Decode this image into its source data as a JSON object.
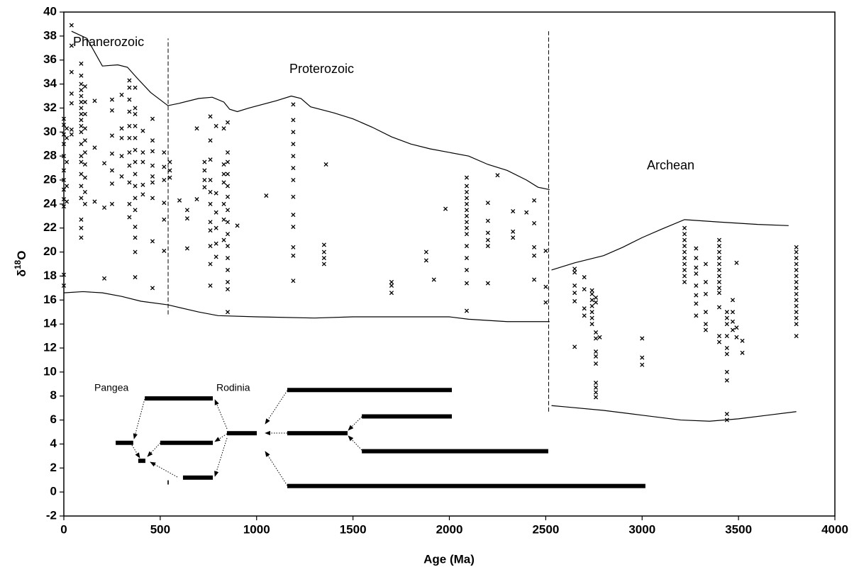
{
  "chart_data": {
    "type": "scatter",
    "xlabel": "Age (Ma)",
    "ylabel": {
      "symbol": "δ",
      "superscript": "18",
      "letter": "O"
    },
    "xlim": [
      0,
      4000
    ],
    "xticks": [
      0,
      500,
      1000,
      1500,
      2000,
      2500,
      3000,
      3500,
      4000
    ],
    "ylim": [
      -2,
      40
    ],
    "yticks": [
      -2,
      0,
      2,
      4,
      6,
      8,
      10,
      12,
      14,
      16,
      18,
      20,
      22,
      24,
      26,
      28,
      30,
      32,
      34,
      36,
      38,
      40
    ],
    "marker": "x",
    "color": "#000000",
    "labels": [
      "Phanerozoic",
      "Proterozoic",
      "Archean",
      "Pangea",
      "Rodinia"
    ],
    "samples": [
      {
        "x": 0,
        "values": [
          17.2,
          18.1,
          23.8,
          24.4,
          25.2,
          26.0,
          26.8,
          28.0,
          29.0,
          29.8,
          30.6,
          31.1
        ]
      },
      {
        "x": 15,
        "values": [
          24.2,
          25.5,
          27.5,
          29.5,
          30.3
        ]
      },
      {
        "x": 40,
        "values": [
          38.9,
          37.2,
          35.0,
          33.2,
          32.4,
          30.2,
          29.8
        ]
      },
      {
        "x": 90,
        "values": [
          21.2,
          22.0,
          22.7,
          24.5,
          25.5,
          26.5,
          27.5,
          28.0,
          29.0,
          30.0,
          30.5,
          31.0,
          31.5,
          32.0,
          32.5,
          33.0,
          33.5,
          34.0,
          34.7,
          35.7
        ]
      },
      {
        "x": 110,
        "values": [
          24.0,
          25.0,
          26.2,
          27.3,
          28.3,
          29.3,
          30.3,
          31.5,
          32.5,
          33.8
        ]
      },
      {
        "x": 160,
        "values": [
          24.2,
          28.7,
          32.6
        ]
      },
      {
        "x": 210,
        "values": [
          17.8,
          23.7,
          27.4
        ]
      },
      {
        "x": 250,
        "values": [
          24.0,
          25.7,
          26.8,
          28.2,
          29.7,
          31.8,
          32.7
        ]
      },
      {
        "x": 300,
        "values": [
          26.3,
          28.0,
          29.5,
          30.3,
          33.1
        ]
      },
      {
        "x": 340,
        "values": [
          22.9,
          24.0,
          25.8,
          27.2,
          28.3,
          29.5,
          30.5,
          31.7,
          32.7,
          33.7,
          34.3
        ]
      },
      {
        "x": 370,
        "values": [
          17.9,
          20.0,
          21.2,
          22.1,
          23.5,
          24.5,
          25.5,
          26.5,
          27.5,
          28.5,
          29.5,
          30.5,
          31.5,
          32.0,
          33.7
        ]
      },
      {
        "x": 410,
        "values": [
          24.8,
          25.6,
          27.5,
          28.3,
          30.1
        ]
      },
      {
        "x": 460,
        "values": [
          17.0,
          20.9,
          24.5,
          25.8,
          26.3,
          27.2,
          28.4,
          29.3,
          31.1
        ]
      },
      {
        "x": 520,
        "values": [
          20.1,
          22.7,
          24.1,
          26.0,
          27.1,
          28.3
        ]
      },
      {
        "x": 550,
        "values": [
          26.2,
          26.8,
          27.5
        ]
      },
      {
        "x": 600,
        "values": [
          24.3
        ]
      },
      {
        "x": 640,
        "values": [
          20.3,
          22.8,
          23.5
        ]
      },
      {
        "x": 690,
        "values": [
          24.4,
          30.3
        ]
      },
      {
        "x": 730,
        "values": [
          25.4,
          26.0,
          26.8,
          27.5
        ]
      },
      {
        "x": 760,
        "values": [
          17.2,
          19.0,
          20.5,
          21.8,
          22.5,
          24.0,
          25.0,
          26.0,
          27.7,
          29.3,
          31.3
        ]
      },
      {
        "x": 790,
        "values": [
          19.6,
          20.7,
          22.0,
          23.3,
          24.9,
          30.5
        ]
      },
      {
        "x": 830,
        "values": [
          21.0,
          22.7,
          24.0,
          25.8,
          26.5,
          27.3,
          30.3
        ]
      },
      {
        "x": 850,
        "values": [
          15.0,
          16.9,
          17.5,
          18.5,
          19.5,
          20.5,
          21.5,
          22.5,
          23.5,
          24.6,
          25.5,
          26.5,
          27.5,
          28.3,
          30.8
        ]
      },
      {
        "x": 900,
        "values": [
          22.2
        ]
      },
      {
        "x": 1050,
        "values": [
          24.7
        ]
      },
      {
        "x": 1190,
        "values": [
          17.6,
          19.7,
          20.4,
          22.1,
          23.1,
          24.6,
          26.0,
          27.0,
          28.0,
          29.0,
          30.0,
          31.0,
          32.3
        ]
      },
      {
        "x": 1350,
        "values": [
          19.0,
          19.5,
          20.0,
          20.6
        ]
      },
      {
        "x": 1360,
        "values": [
          27.3
        ]
      },
      {
        "x": 1700,
        "values": [
          16.6,
          17.2,
          17.5
        ]
      },
      {
        "x": 1880,
        "values": [
          19.3,
          20.0
        ]
      },
      {
        "x": 1920,
        "values": [
          17.7
        ]
      },
      {
        "x": 1980,
        "values": [
          23.6
        ]
      },
      {
        "x": 2090,
        "values": [
          15.1,
          17.4,
          18.5,
          19.5,
          20.5,
          21.5,
          22.0,
          22.5,
          23.0,
          23.5,
          24.0,
          24.5,
          25.0,
          25.5,
          26.2
        ]
      },
      {
        "x": 2200,
        "values": [
          17.4,
          20.5,
          21.0,
          21.6,
          22.6,
          24.1
        ]
      },
      {
        "x": 2250,
        "values": [
          26.4
        ]
      },
      {
        "x": 2330,
        "values": [
          21.2,
          21.7,
          23.4
        ]
      },
      {
        "x": 2400,
        "values": [
          23.3
        ]
      },
      {
        "x": 2440,
        "values": [
          17.7,
          19.7,
          20.4,
          22.4,
          24.3
        ]
      },
      {
        "x": 2500,
        "values": [
          15.8,
          17.1,
          20.1
        ]
      },
      {
        "x": 2650,
        "values": [
          12.1,
          15.9,
          16.6,
          17.2,
          18.3,
          18.6
        ]
      },
      {
        "x": 2700,
        "values": [
          14.7,
          15.3,
          16.9,
          17.9
        ]
      },
      {
        "x": 2740,
        "values": [
          14.0,
          14.5,
          15.0,
          15.5,
          16.0,
          16.5,
          16.8
        ]
      },
      {
        "x": 2760,
        "values": [
          7.9,
          8.3,
          8.7,
          9.1,
          10.7,
          11.3,
          11.7,
          12.8,
          13.3,
          15.8,
          16.2
        ]
      },
      {
        "x": 2780,
        "values": [
          12.9
        ]
      },
      {
        "x": 3000,
        "values": [
          10.6,
          11.2,
          12.8
        ]
      },
      {
        "x": 3220,
        "values": [
          17.5,
          18.0,
          18.5,
          19.0,
          19.5,
          20.0,
          20.5,
          21.0,
          21.5,
          22.0
        ]
      },
      {
        "x": 3280,
        "values": [
          14.7,
          15.7,
          16.4,
          17.2,
          18.2,
          18.7,
          19.5,
          20.3
        ]
      },
      {
        "x": 3330,
        "values": [
          13.5,
          14.0,
          15.0,
          16.5,
          17.5,
          19.0
        ]
      },
      {
        "x": 3400,
        "values": [
          12.5,
          13.0,
          15.4,
          16.6,
          17.0,
          17.5,
          18.0,
          18.5,
          19.0,
          19.5,
          20.0,
          20.5,
          21.0
        ]
      },
      {
        "x": 3440,
        "values": [
          6.0,
          6.5,
          9.3,
          10.0,
          11.5,
          12.0,
          13.0,
          14.0,
          14.5,
          15.0
        ]
      },
      {
        "x": 3470,
        "values": [
          13.5,
          14.2,
          15.0,
          16.0
        ]
      },
      {
        "x": 3490,
        "values": [
          12.9,
          13.7,
          19.1
        ]
      },
      {
        "x": 3520,
        "values": [
          11.6,
          12.6
        ]
      },
      {
        "x": 3800,
        "values": [
          13.0,
          14.0,
          14.5,
          15.0,
          15.5,
          16.0,
          16.5,
          17.0,
          17.5,
          18.0,
          18.5,
          19.0,
          19.5,
          20.0,
          20.4
        ]
      }
    ],
    "curves": [
      {
        "x": [
          40,
          120,
          200,
          280,
          330,
          380,
          450,
          540,
          600,
          700,
          770,
          830,
          860,
          900,
          960,
          1100,
          1180,
          1230,
          1280,
          1400,
          1500,
          1600,
          1700,
          1800,
          1900,
          2000,
          2100,
          2200,
          2300,
          2400,
          2460,
          2520
        ],
        "values": [
          38.4,
          37.8,
          35.5,
          35.6,
          35.4,
          34.5,
          33.3,
          32.2,
          32.4,
          32.8,
          32.9,
          32.5,
          31.9,
          31.7,
          32.0,
          32.6,
          33.0,
          32.8,
          32.1,
          31.6,
          31.1,
          30.4,
          29.6,
          29.0,
          28.6,
          28.3,
          28.0,
          27.3,
          26.8,
          26.0,
          25.4,
          25.2
        ]
      },
      {
        "x": [
          0,
          100,
          200,
          300,
          400,
          540,
          700,
          800,
          1000,
          1300,
          1500,
          2000,
          2100,
          2300,
          2520
        ],
        "values": [
          16.6,
          16.7,
          16.6,
          16.3,
          15.9,
          15.6,
          15.0,
          14.7,
          14.6,
          14.5,
          14.6,
          14.6,
          14.4,
          14.2,
          14.2
        ]
      },
      {
        "x": [
          2530,
          2650,
          2800,
          2900,
          3000,
          3100,
          3220,
          3400,
          3600,
          3760
        ],
        "values": [
          18.5,
          19.1,
          19.7,
          20.4,
          21.2,
          21.9,
          22.7,
          22.5,
          22.3,
          22.2
        ]
      },
      {
        "x": [
          2530,
          2600,
          2800,
          3000,
          3200,
          3350,
          3500,
          3650,
          3800
        ],
        "values": [
          7.2,
          7.1,
          6.8,
          6.4,
          6.0,
          5.9,
          6.1,
          6.4,
          6.7
        ]
      }
    ],
    "boundaries": [
      {
        "x": 541,
        "values": [
          14.8,
          37.8
        ]
      },
      {
        "x": 2515,
        "values": [
          6.7,
          38.4
        ]
      }
    ],
    "ranges": [
      {
        "x": [
          269,
          360
        ],
        "value": 4.1
      },
      {
        "x": [
          386,
          423
        ],
        "value": 2.6
      },
      {
        "x": [
          420,
          773
        ],
        "value": 7.8
      },
      {
        "x": [
          500,
          773
        ],
        "value": 4.1
      },
      {
        "x": [
          618,
          773
        ],
        "value": 1.2
      },
      {
        "x": [
          538,
          544
        ],
        "value": 0.8
      },
      {
        "x": [
          846,
          1001
        ],
        "value": 4.9
      },
      {
        "x": [
          1159,
          2013
        ],
        "value": 8.5
      },
      {
        "x": [
          1159,
          1472
        ],
        "value": 4.9
      },
      {
        "x": [
          1546,
          2013
        ],
        "value": 6.3
      },
      {
        "x": [
          1546,
          2513
        ],
        "value": 3.4
      },
      {
        "x": [
          1159,
          3017
        ],
        "value": 0.5
      }
    ]
  }
}
